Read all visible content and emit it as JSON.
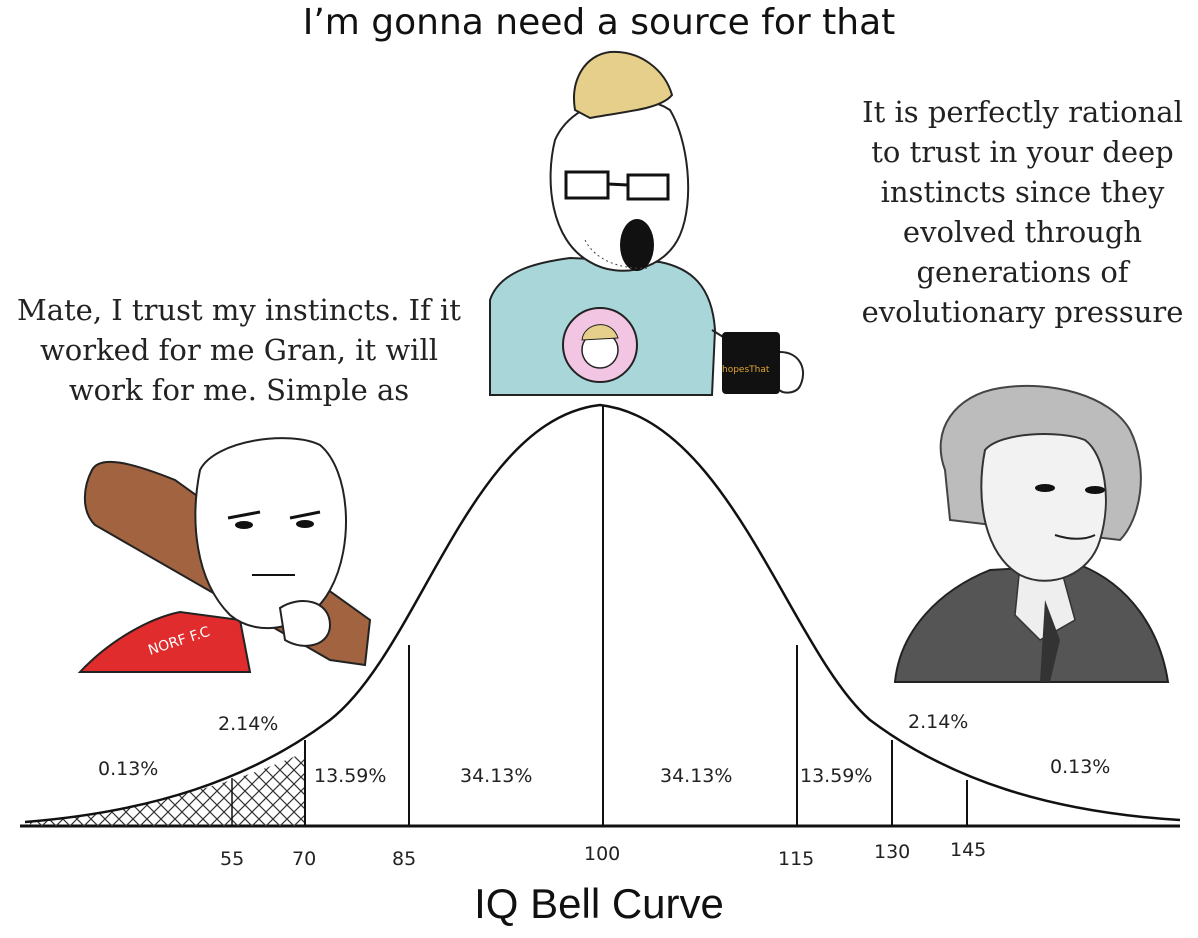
{
  "header": {
    "title": "I’m gonna need a source for that"
  },
  "left_quote": {
    "lines": [
      "Mate, I trust my instincts. If it",
      "worked for me Gran, it will",
      "work for me. Simple as"
    ]
  },
  "right_quote": {
    "lines": [
      "It is perfectly rational",
      "to trust in your deep",
      "instincts since they",
      "evolved through",
      "generations of",
      "evolutionary pressure"
    ]
  },
  "left_figure": {
    "shirt_text": "NORF F.C"
  },
  "middle_figure": {
    "mug_text": "hopesThat"
  },
  "chart": {
    "percent_labels": [
      "2.14%",
      "0.13%",
      "13.59%",
      "34.13%",
      "34.13%",
      "13.59%",
      "2.14%",
      "0.13%"
    ],
    "tick_labels": [
      "55",
      "70",
      "85",
      "100",
      "115",
      "130",
      "145"
    ],
    "title": "IQ Bell Curve"
  }
}
